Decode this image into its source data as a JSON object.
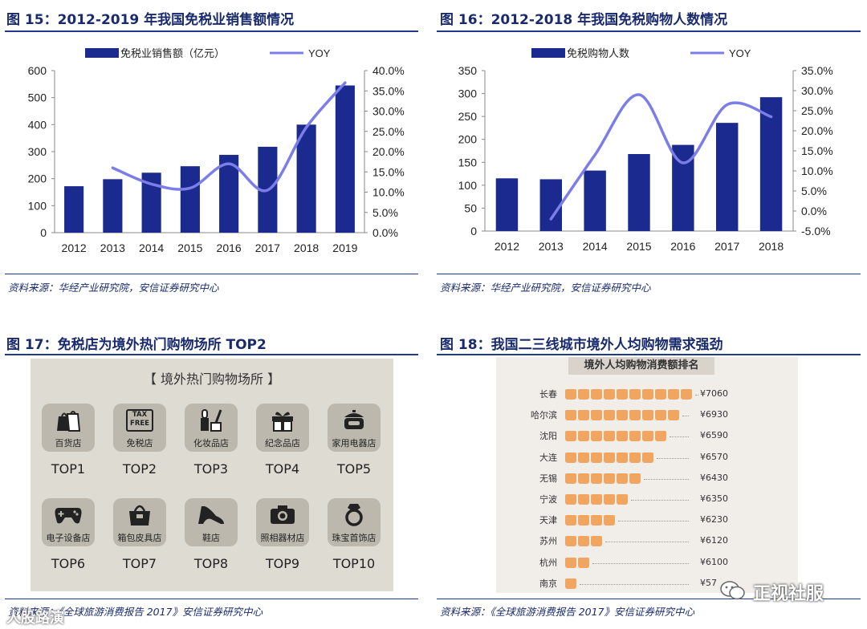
{
  "fig15": {
    "title": "图 15：2012-2019 年我国免税业销售额情况",
    "source": "资料来源：华经产业研究院，安信证券研究中心"
  },
  "fig16": {
    "title": "图 16：2012-2018 年我国免税购物人数情况",
    "source": "资料来源：华经产业研究院，安信证券研究中心"
  },
  "fig17": {
    "title": "图 17：免税店为境外热门购物场所 TOP2",
    "header": "【 境外热门购物场所 】",
    "items": [
      {
        "label": "百货店",
        "rank": "TOP1",
        "icon": "shopping-bags-icon"
      },
      {
        "label": "免税店",
        "rank": "TOP2",
        "icon": "tax-free-icon",
        "icon_text": "TAX\nFREE"
      },
      {
        "label": "化妆品店",
        "rank": "TOP3",
        "icon": "cosmetics-icon"
      },
      {
        "label": "纪念品店",
        "rank": "TOP4",
        "icon": "gift-box-icon"
      },
      {
        "label": "家用电器店",
        "rank": "TOP5",
        "icon": "rice-cooker-icon"
      },
      {
        "label": "电子设备店",
        "rank": "TOP6",
        "icon": "gamepad-icon"
      },
      {
        "label": "箱包皮具店",
        "rank": "TOP7",
        "icon": "handbag-icon"
      },
      {
        "label": "鞋店",
        "rank": "TOP8",
        "icon": "high-heel-icon"
      },
      {
        "label": "照相器材店",
        "rank": "TOP9",
        "icon": "camera-icon"
      },
      {
        "label": "珠宝首饰店",
        "rank": "TOP10",
        "icon": "ring-icon"
      }
    ],
    "source": "资料来源：《全球旅游消费报告 2017》安信证券研究中心"
  },
  "fig18": {
    "title": "图 18：我国二三线城市境外人均购物需求强劲",
    "header": "境外人均购物消费额排名",
    "rows": [
      {
        "city": "长春",
        "value": "¥7060",
        "bags": 10
      },
      {
        "city": "哈尔滨",
        "value": "¥6930",
        "bags": 9
      },
      {
        "city": "沈阳",
        "value": "¥6590",
        "bags": 8
      },
      {
        "city": "大连",
        "value": "¥6570",
        "bags": 7
      },
      {
        "city": "无锡",
        "value": "¥6430",
        "bags": 6
      },
      {
        "city": "宁波",
        "value": "¥6350",
        "bags": 5
      },
      {
        "city": "天津",
        "value": "¥6230",
        "bags": 4
      },
      {
        "city": "苏州",
        "value": "¥6120",
        "bags": 3
      },
      {
        "city": "杭州",
        "value": "¥6100",
        "bags": 2
      },
      {
        "city": "南京",
        "value": "¥57",
        "bags": 1
      }
    ],
    "source": "资料来源：《全球旅游消费报告 2017》安信证券研究中心",
    "watermark": "正视社服"
  },
  "watermark_left": "人股路演",
  "colors": {
    "bar": "#1b2a8e",
    "line": "#7b7de8",
    "title": "#1a2b6d",
    "bag": "#f0a560"
  },
  "chart_data": [
    {
      "type": "bar",
      "legend": [
        "免税业销售额（亿元）",
        "YOY"
      ],
      "categories": [
        "2012",
        "2013",
        "2014",
        "2015",
        "2016",
        "2017",
        "2018",
        "2019"
      ],
      "series": [
        {
          "name": "免税业销售额（亿元）",
          "axis": "left",
          "values": [
            172,
            198,
            222,
            246,
            288,
            318,
            400,
            545
          ]
        },
        {
          "name": "YOY",
          "type": "line",
          "axis": "right",
          "values": [
            null,
            16.0,
            12.0,
            11.0,
            17.0,
            10.5,
            26.0,
            37.0
          ]
        }
      ],
      "yticks_left": [
        "0",
        "100",
        "200",
        "300",
        "400",
        "500",
        "600"
      ],
      "ylim_left": [
        0,
        600
      ],
      "yticks_right": [
        "0.0%",
        "5.0%",
        "10.0%",
        "15.0%",
        "20.0%",
        "25.0%",
        "30.0%",
        "35.0%",
        "40.0%"
      ],
      "ylim_right": [
        0,
        40
      ]
    },
    {
      "type": "bar",
      "legend": [
        "免税购物人数",
        "YOY"
      ],
      "categories": [
        "2012",
        "2013",
        "2014",
        "2015",
        "2016",
        "2017",
        "2018"
      ],
      "series": [
        {
          "name": "免税购物人数",
          "axis": "left",
          "values": [
            115,
            113,
            132,
            168,
            188,
            236,
            292
          ]
        },
        {
          "name": "YOY",
          "type": "line",
          "axis": "right",
          "values": [
            null,
            -2.0,
            14.0,
            29.0,
            12.0,
            26.5,
            23.5
          ]
        }
      ],
      "yticks_left": [
        "0",
        "50",
        "100",
        "150",
        "200",
        "250",
        "300",
        "350"
      ],
      "ylim_left": [
        0,
        350
      ],
      "yticks_right": [
        "-5.0%",
        "0.0%",
        "5.0%",
        "10.0%",
        "15.0%",
        "20.0%",
        "25.0%",
        "30.0%",
        "35.0%"
      ],
      "ylim_right": [
        -5,
        35
      ]
    }
  ]
}
